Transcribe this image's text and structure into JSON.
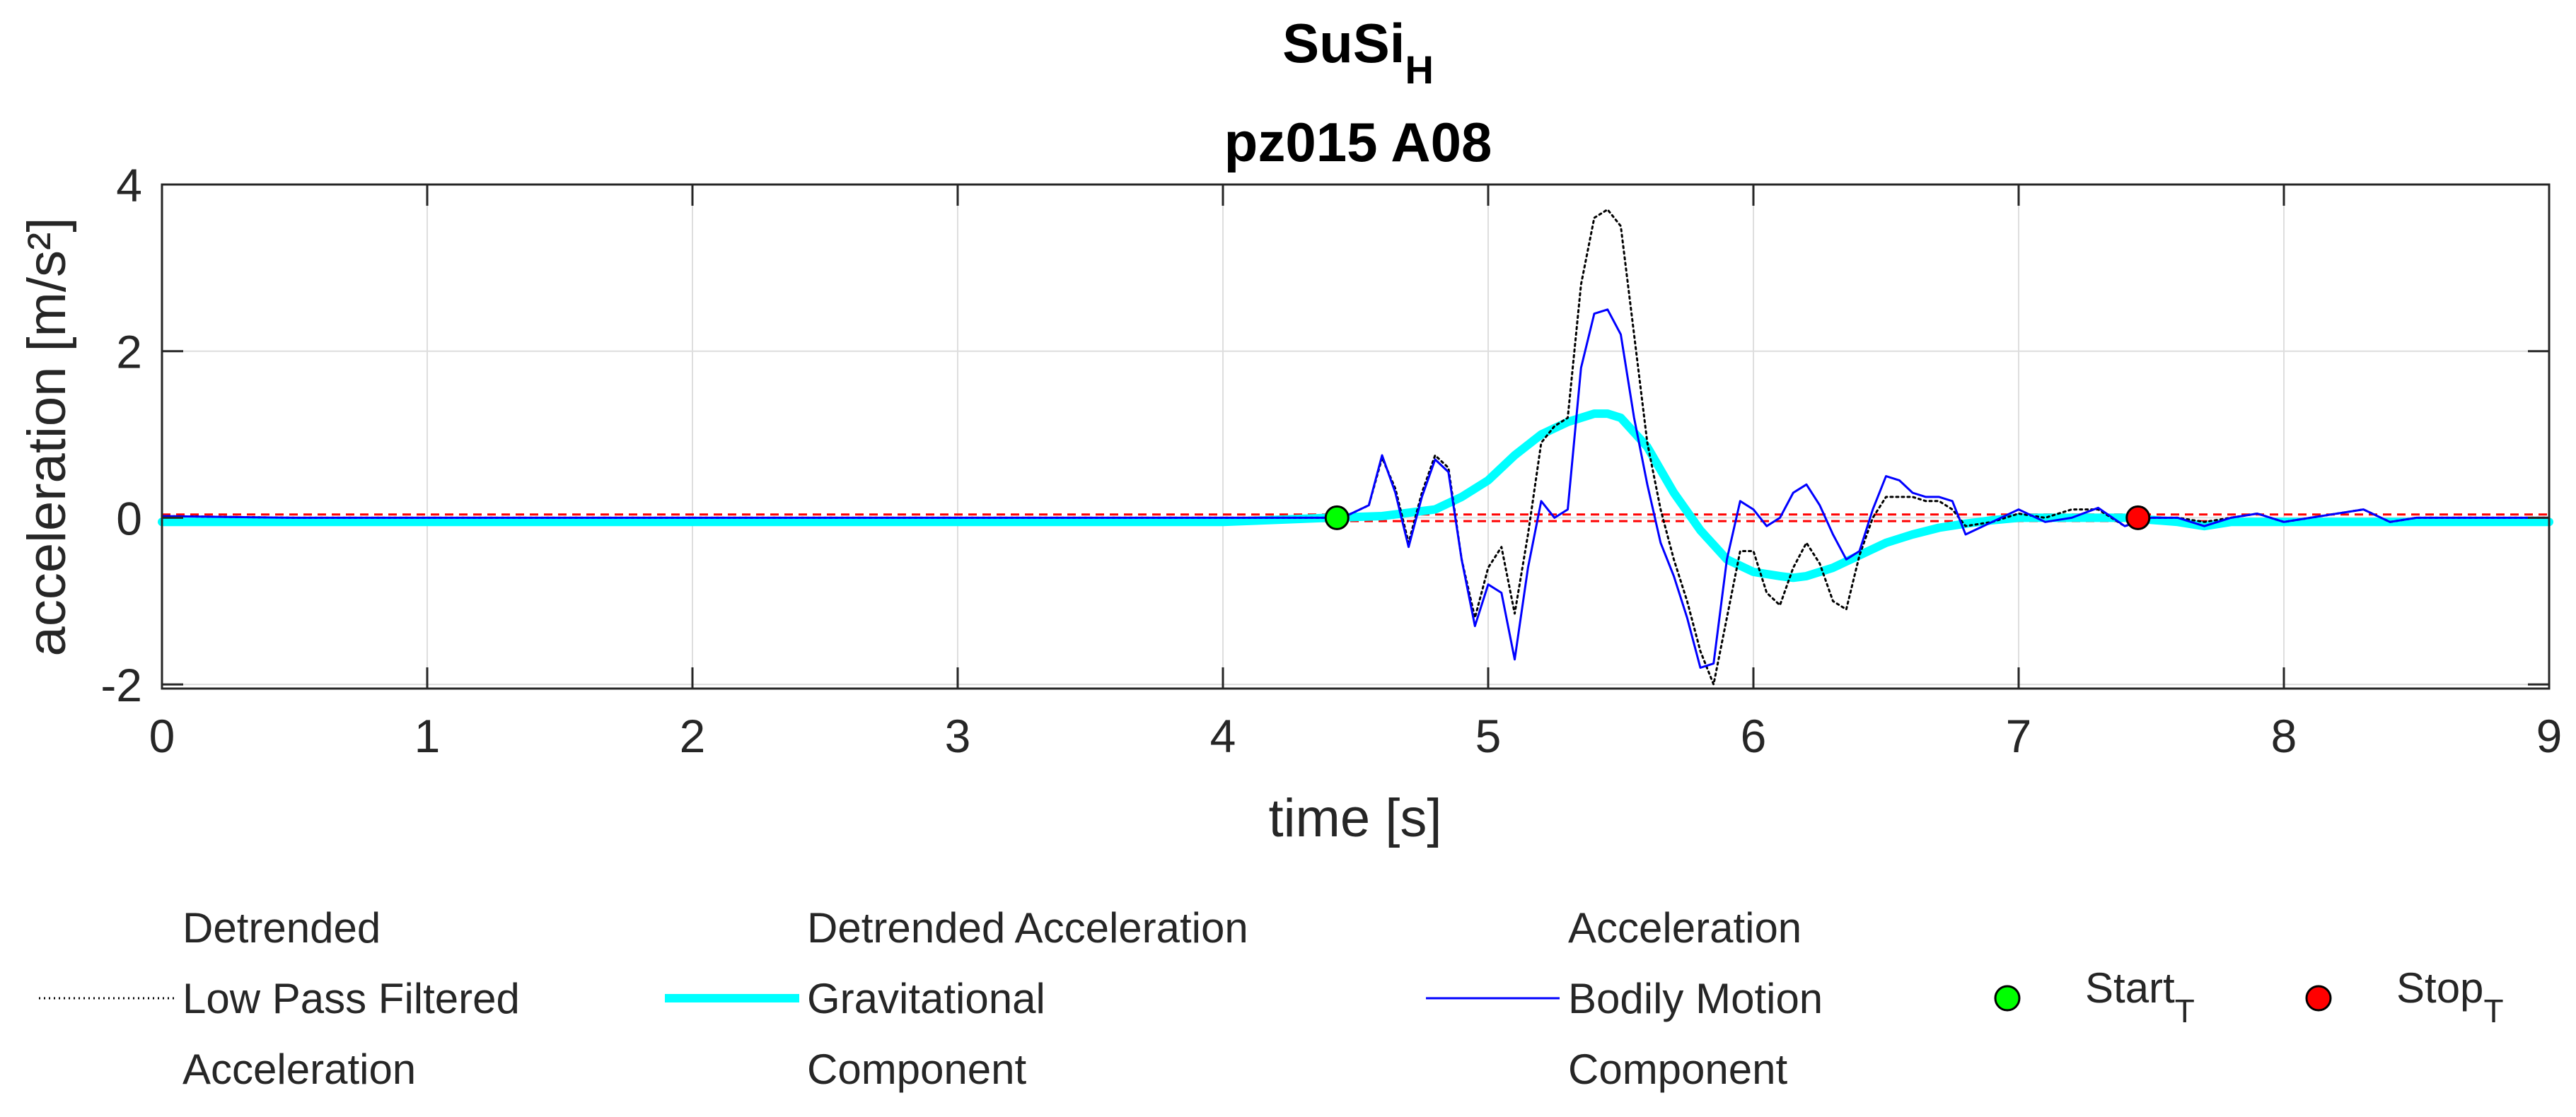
{
  "chart_data": {
    "type": "line",
    "title": {
      "base": "SuSi",
      "subscript": "H",
      "line2": "pz015 A08"
    },
    "xlabel": "time [s]",
    "ylabel": "acceleration [m/s²]",
    "xlim": [
      0,
      9
    ],
    "ylim": [
      -2.05,
      4
    ],
    "xticks": [
      "0",
      "1",
      "2",
      "3",
      "4",
      "5",
      "6",
      "7",
      "8",
      "9"
    ],
    "yticks": [
      "-2",
      "0",
      "2",
      "4"
    ],
    "xtick_values": [
      0,
      1,
      2,
      3,
      4,
      5,
      6,
      7,
      8,
      9
    ],
    "ytick_values": [
      -2,
      0,
      2,
      4
    ],
    "grid": true,
    "series": [
      {
        "name": "Detrended Low Pass Filtered Acceleration",
        "color": "#000000",
        "style": "dotted",
        "x": [
          0,
          0.5,
          1,
          2,
          3,
          4,
          4.3,
          4.45,
          4.55,
          4.6,
          4.65,
          4.7,
          4.75,
          4.8,
          4.85,
          4.9,
          4.95,
          5.0,
          5.05,
          5.1,
          5.15,
          5.2,
          5.25,
          5.3,
          5.35,
          5.4,
          5.45,
          5.5,
          5.55,
          5.6,
          5.65,
          5.7,
          5.75,
          5.8,
          5.85,
          5.9,
          5.95,
          6.0,
          6.05,
          6.1,
          6.15,
          6.2,
          6.25,
          6.3,
          6.35,
          6.4,
          6.45,
          6.5,
          6.55,
          6.6,
          6.65,
          6.7,
          6.75,
          6.8,
          6.9,
          7.0,
          7.1,
          7.2,
          7.3,
          7.4,
          7.5,
          7.6,
          7.7,
          7.8,
          7.9,
          8.0,
          8.1,
          8.2,
          8.3,
          8.4,
          8.5,
          8.6,
          8.8,
          9.0
        ],
        "y": [
          0.02,
          0.0,
          0.0,
          0.0,
          0.0,
          0.0,
          0.0,
          0.0,
          0.15,
          0.72,
          0.35,
          -0.3,
          0.3,
          0.75,
          0.6,
          -0.5,
          -1.2,
          -0.6,
          -0.35,
          -1.15,
          -0.2,
          0.9,
          1.1,
          1.2,
          2.8,
          3.6,
          3.7,
          3.5,
          2.2,
          0.9,
          0.1,
          -0.5,
          -1.0,
          -1.6,
          -2.0,
          -1.2,
          -0.4,
          -0.4,
          -0.9,
          -1.05,
          -0.6,
          -0.3,
          -0.55,
          -1.0,
          -1.1,
          -0.45,
          0.0,
          0.25,
          0.25,
          0.25,
          0.2,
          0.2,
          0.1,
          -0.1,
          -0.05,
          0.05,
          0.0,
          0.1,
          0.1,
          -0.1,
          0.0,
          0.0,
          -0.05,
          0.0,
          0.05,
          -0.05,
          0.0,
          0.05,
          0.1,
          -0.05,
          0.0,
          0.0,
          0.0,
          0.0
        ]
      },
      {
        "name": "Detrended Acceleration Gravitational Component",
        "color": "#00FFFF",
        "style": "thick",
        "x": [
          0,
          1,
          2,
          3,
          4,
          4.4,
          4.6,
          4.8,
          4.9,
          5.0,
          5.1,
          5.2,
          5.3,
          5.4,
          5.45,
          5.5,
          5.6,
          5.7,
          5.8,
          5.9,
          6.0,
          6.1,
          6.15,
          6.2,
          6.3,
          6.4,
          6.5,
          6.6,
          6.7,
          6.8,
          6.9,
          7.0,
          7.2,
          7.4,
          7.6,
          7.7,
          7.8,
          8.0,
          8.2,
          8.4,
          8.6,
          8.8,
          9.0
        ],
        "y": [
          -0.05,
          -0.05,
          -0.05,
          -0.05,
          -0.05,
          0.0,
          0.02,
          0.1,
          0.25,
          0.45,
          0.75,
          1.0,
          1.15,
          1.25,
          1.25,
          1.2,
          0.85,
          0.3,
          -0.15,
          -0.5,
          -0.65,
          -0.7,
          -0.72,
          -0.7,
          -0.6,
          -0.45,
          -0.3,
          -0.2,
          -0.12,
          -0.07,
          -0.03,
          0.0,
          0.0,
          0.0,
          -0.05,
          -0.1,
          -0.05,
          -0.05,
          -0.05,
          -0.05,
          -0.05,
          -0.05,
          -0.05
        ]
      },
      {
        "name": "Acceleration Bodily Motion Component",
        "color": "#0000FF",
        "style": "solid",
        "x": [
          0,
          0.5,
          1,
          2,
          3,
          4,
          4.3,
          4.45,
          4.55,
          4.6,
          4.65,
          4.7,
          4.75,
          4.8,
          4.85,
          4.9,
          4.95,
          5.0,
          5.05,
          5.1,
          5.15,
          5.2,
          5.25,
          5.3,
          5.35,
          5.4,
          5.45,
          5.5,
          5.55,
          5.6,
          5.65,
          5.7,
          5.75,
          5.8,
          5.85,
          5.9,
          5.95,
          6.0,
          6.05,
          6.1,
          6.15,
          6.2,
          6.25,
          6.3,
          6.35,
          6.4,
          6.45,
          6.5,
          6.55,
          6.6,
          6.65,
          6.7,
          6.75,
          6.8,
          6.9,
          7.0,
          7.1,
          7.2,
          7.3,
          7.4,
          7.5,
          7.6,
          7.7,
          7.8,
          7.9,
          8.0,
          8.1,
          8.2,
          8.3,
          8.4,
          8.5,
          8.6,
          8.8,
          9.0
        ],
        "y": [
          0.02,
          0.0,
          0.0,
          0.0,
          0.0,
          0.0,
          0.0,
          0.0,
          0.15,
          0.75,
          0.3,
          -0.35,
          0.25,
          0.7,
          0.55,
          -0.5,
          -1.3,
          -0.8,
          -0.9,
          -1.7,
          -0.6,
          0.2,
          0.0,
          0.1,
          1.8,
          2.45,
          2.5,
          2.2,
          1.2,
          0.4,
          -0.3,
          -0.7,
          -1.2,
          -1.8,
          -1.75,
          -0.5,
          0.2,
          0.1,
          -0.1,
          0.0,
          0.3,
          0.4,
          0.15,
          -0.2,
          -0.5,
          -0.4,
          0.1,
          0.5,
          0.45,
          0.3,
          0.25,
          0.25,
          0.2,
          -0.2,
          -0.05,
          0.1,
          -0.05,
          0.0,
          0.12,
          -0.1,
          0.0,
          0.0,
          -0.1,
          0.0,
          0.05,
          -0.05,
          0.0,
          0.05,
          0.1,
          -0.05,
          0.0,
          0.0,
          0.0,
          0.0
        ]
      }
    ],
    "thresholds": [
      {
        "name": "upper-threshold",
        "y": 0.04,
        "color": "#FF0000"
      },
      {
        "name": "lower-threshold",
        "y": -0.04,
        "color": "#FF0000"
      }
    ],
    "markers": [
      {
        "name": "Start",
        "subscript": "T",
        "x": 4.43,
        "y": 0.0,
        "color": "#00FF00"
      },
      {
        "name": "Stop",
        "subscript": "T",
        "x": 7.45,
        "y": 0.0,
        "color": "#FF0000"
      }
    ],
    "legend": {
      "placement": "bottom",
      "entries": [
        {
          "lines": [
            "Detrended",
            "Low Pass Filtered",
            "Acceleration"
          ],
          "color": "#000000",
          "style": "dotted"
        },
        {
          "lines": [
            "Detrended Acceleration",
            "Gravitational",
            "Component"
          ],
          "color": "#00FFFF",
          "style": "thick"
        },
        {
          "lines": [
            "Acceleration",
            "Bodily Motion",
            "Component"
          ],
          "color": "#0000FF",
          "style": "solid"
        },
        {
          "label": "Start",
          "subscript": "T",
          "color": "#00FF00",
          "style": "marker"
        },
        {
          "label": "Stop",
          "subscript": "T",
          "color": "#FF0000",
          "style": "marker"
        }
      ]
    }
  }
}
